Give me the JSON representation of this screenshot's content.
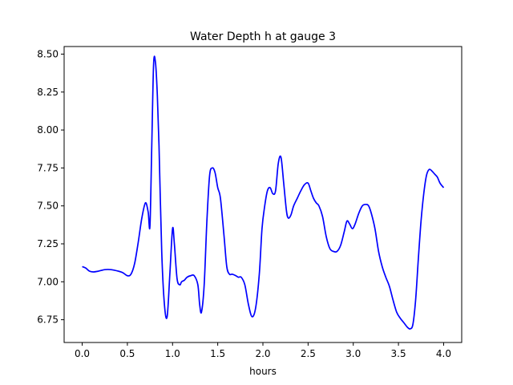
{
  "chart_data": {
    "type": "line",
    "title": "Water Depth h at gauge 3",
    "xlabel": "hours",
    "ylabel": "",
    "xlim": [
      -0.2,
      4.2
    ],
    "ylim": [
      6.6,
      8.55
    ],
    "xticks": [
      {
        "value": 0.0,
        "label": "0.0"
      },
      {
        "value": 0.5,
        "label": "0.5"
      },
      {
        "value": 1.0,
        "label": "1.0"
      },
      {
        "value": 1.5,
        "label": "1.5"
      },
      {
        "value": 2.0,
        "label": "2.0"
      },
      {
        "value": 2.5,
        "label": "2.5"
      },
      {
        "value": 3.0,
        "label": "3.0"
      },
      {
        "value": 3.5,
        "label": "3.5"
      },
      {
        "value": 4.0,
        "label": "4.0"
      }
    ],
    "yticks": [
      {
        "value": 6.75,
        "label": "6.75"
      },
      {
        "value": 7.0,
        "label": "7.00"
      },
      {
        "value": 7.25,
        "label": "7.25"
      },
      {
        "value": 7.5,
        "label": "7.50"
      },
      {
        "value": 7.75,
        "label": "7.75"
      },
      {
        "value": 8.0,
        "label": "8.00"
      },
      {
        "value": 8.25,
        "label": "8.25"
      },
      {
        "value": 8.5,
        "label": "8.50"
      }
    ],
    "grid": false,
    "line_color": "#0000ff",
    "series": [
      {
        "x": [
          0.0,
          0.04,
          0.08,
          0.12,
          0.18,
          0.25,
          0.32,
          0.4,
          0.45,
          0.5,
          0.54,
          0.58,
          0.62,
          0.66,
          0.7,
          0.73,
          0.75,
          0.77,
          0.79,
          0.81,
          0.83,
          0.85,
          0.88,
          0.91,
          0.94,
          0.97,
          1.0,
          1.02,
          1.05,
          1.08,
          1.1,
          1.13,
          1.16,
          1.2,
          1.24,
          1.28,
          1.3,
          1.32,
          1.35,
          1.38,
          1.41,
          1.44,
          1.47,
          1.5,
          1.53,
          1.57,
          1.6,
          1.63,
          1.66,
          1.7,
          1.73,
          1.76,
          1.8,
          1.84,
          1.88,
          1.92,
          1.96,
          1.99,
          2.02,
          2.05,
          2.08,
          2.11,
          2.14,
          2.17,
          2.2,
          2.23,
          2.26,
          2.28,
          2.31,
          2.34,
          2.38,
          2.42,
          2.46,
          2.5,
          2.53,
          2.56,
          2.59,
          2.62,
          2.66,
          2.7,
          2.74,
          2.78,
          2.82,
          2.86,
          2.9,
          2.93,
          2.96,
          2.99,
          3.02,
          3.06,
          3.1,
          3.14,
          3.17,
          3.2,
          3.24,
          3.28,
          3.32,
          3.36,
          3.4,
          3.44,
          3.48,
          3.52,
          3.56,
          3.6,
          3.63,
          3.66,
          3.69,
          3.72,
          3.75,
          3.78,
          3.81,
          3.84,
          3.87,
          3.9,
          3.93,
          3.96,
          4.0
        ],
        "y": [
          7.1,
          7.09,
          7.07,
          7.065,
          7.07,
          7.08,
          7.08,
          7.07,
          7.06,
          7.04,
          7.05,
          7.12,
          7.26,
          7.42,
          7.52,
          7.46,
          7.37,
          7.9,
          8.43,
          8.45,
          8.25,
          7.9,
          7.2,
          6.85,
          6.77,
          7.05,
          7.35,
          7.25,
          7.02,
          6.98,
          7.0,
          7.01,
          7.03,
          7.04,
          7.04,
          6.98,
          6.85,
          6.8,
          6.98,
          7.4,
          7.7,
          7.75,
          7.72,
          7.62,
          7.55,
          7.3,
          7.1,
          7.05,
          7.05,
          7.04,
          7.03,
          7.03,
          6.98,
          6.85,
          6.77,
          6.83,
          7.05,
          7.35,
          7.5,
          7.6,
          7.62,
          7.58,
          7.6,
          7.78,
          7.82,
          7.65,
          7.47,
          7.42,
          7.44,
          7.5,
          7.55,
          7.6,
          7.64,
          7.65,
          7.6,
          7.55,
          7.52,
          7.5,
          7.43,
          7.3,
          7.22,
          7.2,
          7.2,
          7.24,
          7.33,
          7.4,
          7.38,
          7.35,
          7.38,
          7.45,
          7.5,
          7.51,
          7.5,
          7.45,
          7.35,
          7.2,
          7.1,
          7.03,
          6.97,
          6.88,
          6.8,
          6.76,
          6.73,
          6.7,
          6.69,
          6.72,
          6.88,
          7.15,
          7.4,
          7.58,
          7.7,
          7.74,
          7.73,
          7.71,
          7.69,
          7.65,
          7.62
        ]
      }
    ]
  }
}
